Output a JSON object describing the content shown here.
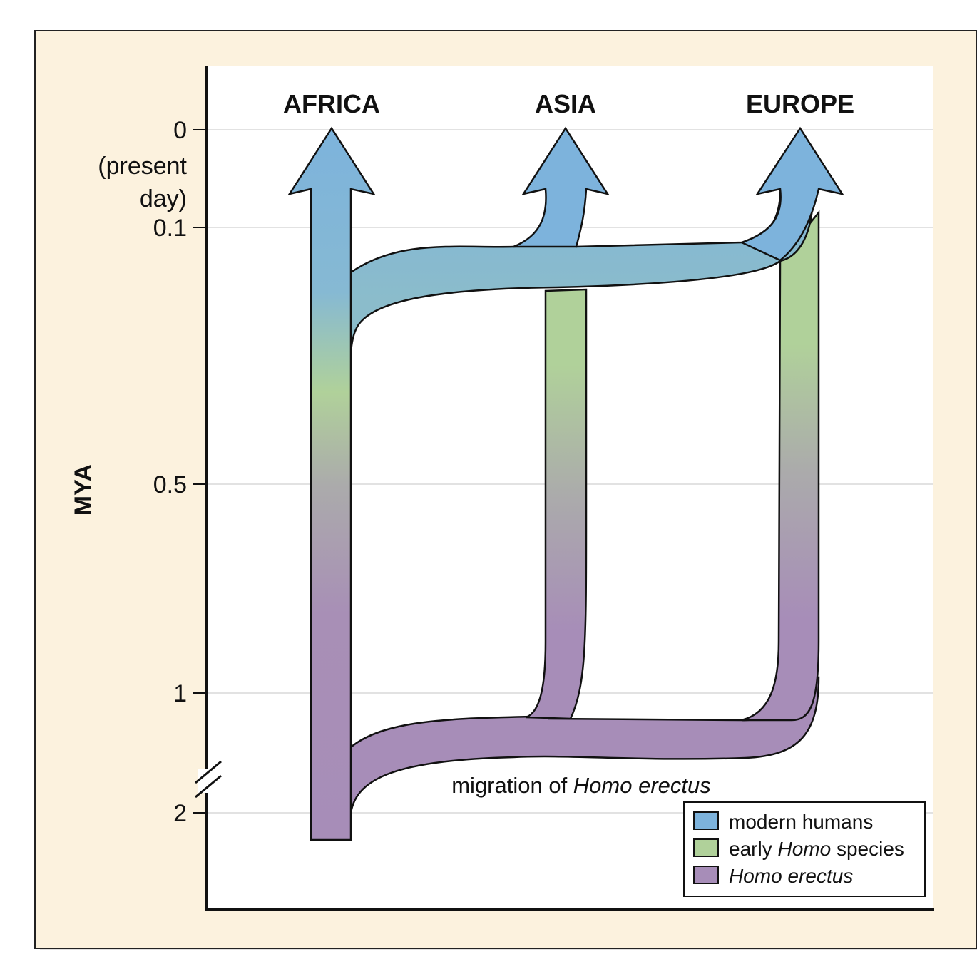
{
  "regions": {
    "africa": "AFRICA",
    "asia": "ASIA",
    "europe": "EUROPE"
  },
  "y_axis": {
    "label": "MYA",
    "ticks": [
      {
        "id": "t0",
        "lines": [
          "0",
          "(present",
          "day)"
        ]
      },
      {
        "id": "t01",
        "lines": [
          "0.1"
        ]
      },
      {
        "id": "t05",
        "lines": [
          "0.5"
        ]
      },
      {
        "id": "t1",
        "lines": [
          "1"
        ]
      },
      {
        "id": "t2",
        "lines": [
          "2"
        ]
      }
    ]
  },
  "annotation": {
    "prefix": "migration of ",
    "italic": "Homo erectus"
  },
  "legend": {
    "modern": {
      "label": "modern humans",
      "color": "#7db3dc"
    },
    "early": {
      "prefix": "early ",
      "italic": "Homo",
      "suffix": " species",
      "color": "#b0d19a"
    },
    "erectus": {
      "italic": "Homo erectus",
      "color": "#a78db8"
    }
  },
  "colors": {
    "frame_bg": "#fcf2de",
    "plot_bg": "#ffffff",
    "gridline": "#e2e2e2",
    "middle_gray": "#aaaaaa"
  }
}
